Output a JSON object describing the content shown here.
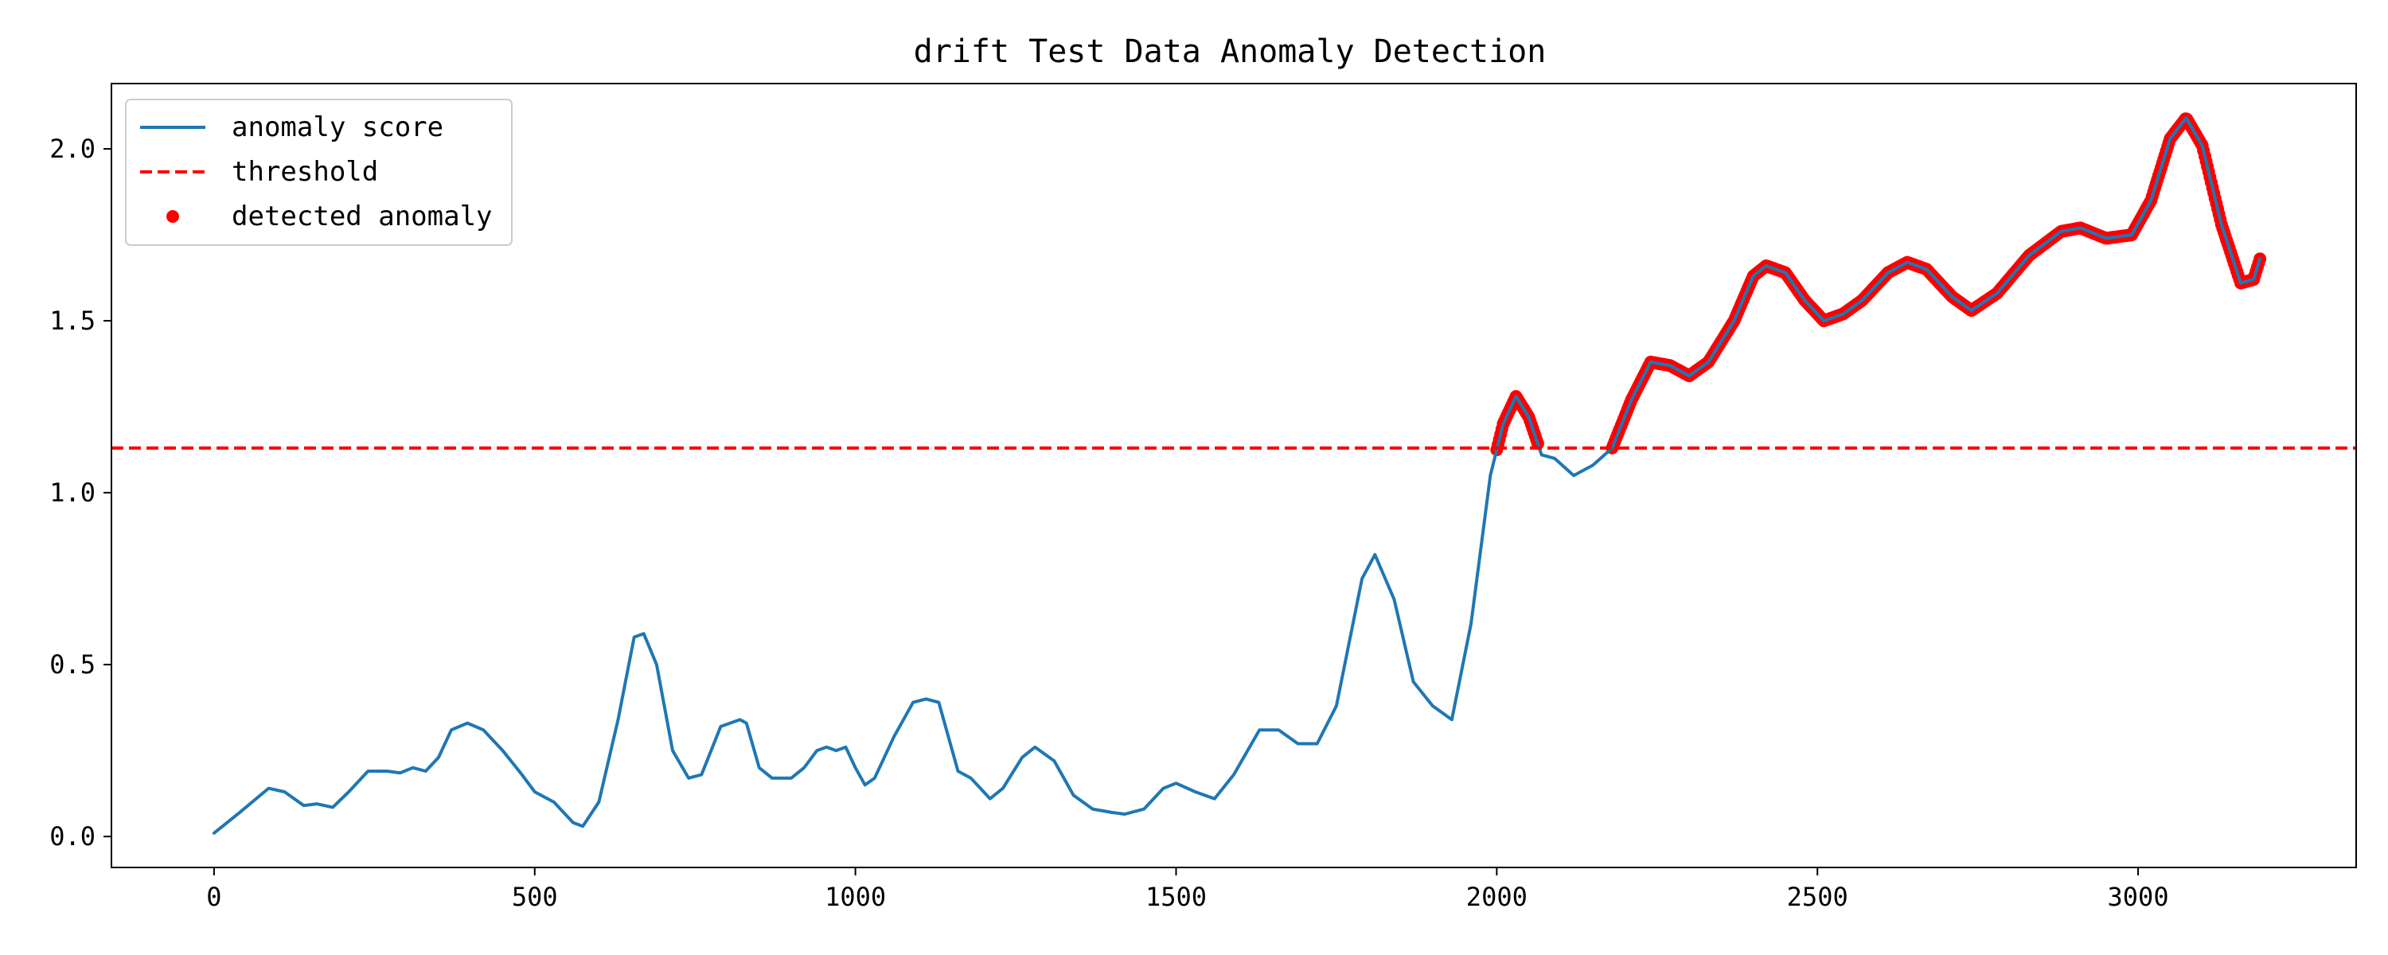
{
  "chart_data": {
    "type": "line",
    "title": "drift Test Data Anomaly Detection",
    "xlabel": "",
    "ylabel": "",
    "xlim": [
      -160,
      3340
    ],
    "ylim": [
      -0.09,
      2.19
    ],
    "xticks": [
      0,
      500,
      1000,
      1500,
      2000,
      2500,
      3000
    ],
    "yticks": [
      0.0,
      0.5,
      1.0,
      1.5,
      2.0
    ],
    "xtick_labels": [
      "0",
      "500",
      "1000",
      "1500",
      "2000",
      "2500",
      "3000"
    ],
    "ytick_labels": [
      "0.0",
      "0.5",
      "1.0",
      "1.5",
      "2.0"
    ],
    "grid": false,
    "legend_position": "top-left",
    "series": [
      {
        "name": "anomaly score",
        "kind": "line",
        "color": "#1f77b4",
        "points": [
          [
            0,
            0.01
          ],
          [
            40,
            0.07
          ],
          [
            85,
            0.14
          ],
          [
            110,
            0.13
          ],
          [
            140,
            0.09
          ],
          [
            160,
            0.095
          ],
          [
            185,
            0.085
          ],
          [
            210,
            0.13
          ],
          [
            240,
            0.19
          ],
          [
            270,
            0.19
          ],
          [
            290,
            0.185
          ],
          [
            310,
            0.2
          ],
          [
            330,
            0.19
          ],
          [
            350,
            0.23
          ],
          [
            370,
            0.31
          ],
          [
            395,
            0.33
          ],
          [
            420,
            0.31
          ],
          [
            450,
            0.25
          ],
          [
            480,
            0.18
          ],
          [
            500,
            0.13
          ],
          [
            530,
            0.1
          ],
          [
            560,
            0.04
          ],
          [
            575,
            0.03
          ],
          [
            600,
            0.1
          ],
          [
            630,
            0.34
          ],
          [
            655,
            0.58
          ],
          [
            670,
            0.59
          ],
          [
            690,
            0.5
          ],
          [
            715,
            0.25
          ],
          [
            740,
            0.17
          ],
          [
            760,
            0.18
          ],
          [
            790,
            0.32
          ],
          [
            820,
            0.34
          ],
          [
            830,
            0.33
          ],
          [
            850,
            0.2
          ],
          [
            870,
            0.17
          ],
          [
            900,
            0.17
          ],
          [
            920,
            0.2
          ],
          [
            940,
            0.25
          ],
          [
            955,
            0.26
          ],
          [
            970,
            0.25
          ],
          [
            985,
            0.26
          ],
          [
            1000,
            0.2
          ],
          [
            1015,
            0.15
          ],
          [
            1030,
            0.17
          ],
          [
            1060,
            0.29
          ],
          [
            1090,
            0.39
          ],
          [
            1110,
            0.4
          ],
          [
            1130,
            0.39
          ],
          [
            1160,
            0.19
          ],
          [
            1180,
            0.17
          ],
          [
            1210,
            0.11
          ],
          [
            1230,
            0.14
          ],
          [
            1260,
            0.23
          ],
          [
            1280,
            0.26
          ],
          [
            1310,
            0.22
          ],
          [
            1340,
            0.12
          ],
          [
            1370,
            0.08
          ],
          [
            1400,
            0.07
          ],
          [
            1420,
            0.065
          ],
          [
            1450,
            0.08
          ],
          [
            1480,
            0.14
          ],
          [
            1500,
            0.155
          ],
          [
            1530,
            0.13
          ],
          [
            1560,
            0.11
          ],
          [
            1590,
            0.18
          ],
          [
            1630,
            0.31
          ],
          [
            1660,
            0.31
          ],
          [
            1690,
            0.27
          ],
          [
            1720,
            0.27
          ],
          [
            1750,
            0.38
          ],
          [
            1790,
            0.75
          ],
          [
            1810,
            0.82
          ],
          [
            1840,
            0.69
          ],
          [
            1870,
            0.45
          ],
          [
            1900,
            0.38
          ],
          [
            1930,
            0.34
          ],
          [
            1960,
            0.62
          ],
          [
            1990,
            1.05
          ],
          [
            2010,
            1.2
          ],
          [
            2030,
            1.28
          ],
          [
            2050,
            1.22
          ],
          [
            2070,
            1.11
          ],
          [
            2090,
            1.1
          ],
          [
            2120,
            1.05
          ],
          [
            2150,
            1.08
          ],
          [
            2180,
            1.13
          ],
          [
            2210,
            1.27
          ],
          [
            2240,
            1.38
          ],
          [
            2270,
            1.37
          ],
          [
            2300,
            1.34
          ],
          [
            2330,
            1.38
          ],
          [
            2370,
            1.5
          ],
          [
            2400,
            1.63
          ],
          [
            2420,
            1.66
          ],
          [
            2450,
            1.64
          ],
          [
            2480,
            1.56
          ],
          [
            2510,
            1.5
          ],
          [
            2540,
            1.52
          ],
          [
            2570,
            1.56
          ],
          [
            2610,
            1.64
          ],
          [
            2640,
            1.67
          ],
          [
            2670,
            1.65
          ],
          [
            2710,
            1.57
          ],
          [
            2740,
            1.53
          ],
          [
            2780,
            1.58
          ],
          [
            2830,
            1.69
          ],
          [
            2880,
            1.76
          ],
          [
            2910,
            1.77
          ],
          [
            2950,
            1.74
          ],
          [
            2990,
            1.75
          ],
          [
            3020,
            1.85
          ],
          [
            3050,
            2.03
          ],
          [
            3075,
            2.09
          ],
          [
            3100,
            2.01
          ],
          [
            3130,
            1.78
          ],
          [
            3160,
            1.61
          ],
          [
            3180,
            1.62
          ],
          [
            3190,
            1.68
          ]
        ]
      },
      {
        "name": "threshold",
        "kind": "hline",
        "color": "#ff0000",
        "y": 1.13
      },
      {
        "name": "detected anomaly",
        "kind": "scatter",
        "color": "#ff0000",
        "segments": [
          [
            2000,
            2065
          ],
          [
            2180,
            3190
          ]
        ]
      }
    ]
  }
}
